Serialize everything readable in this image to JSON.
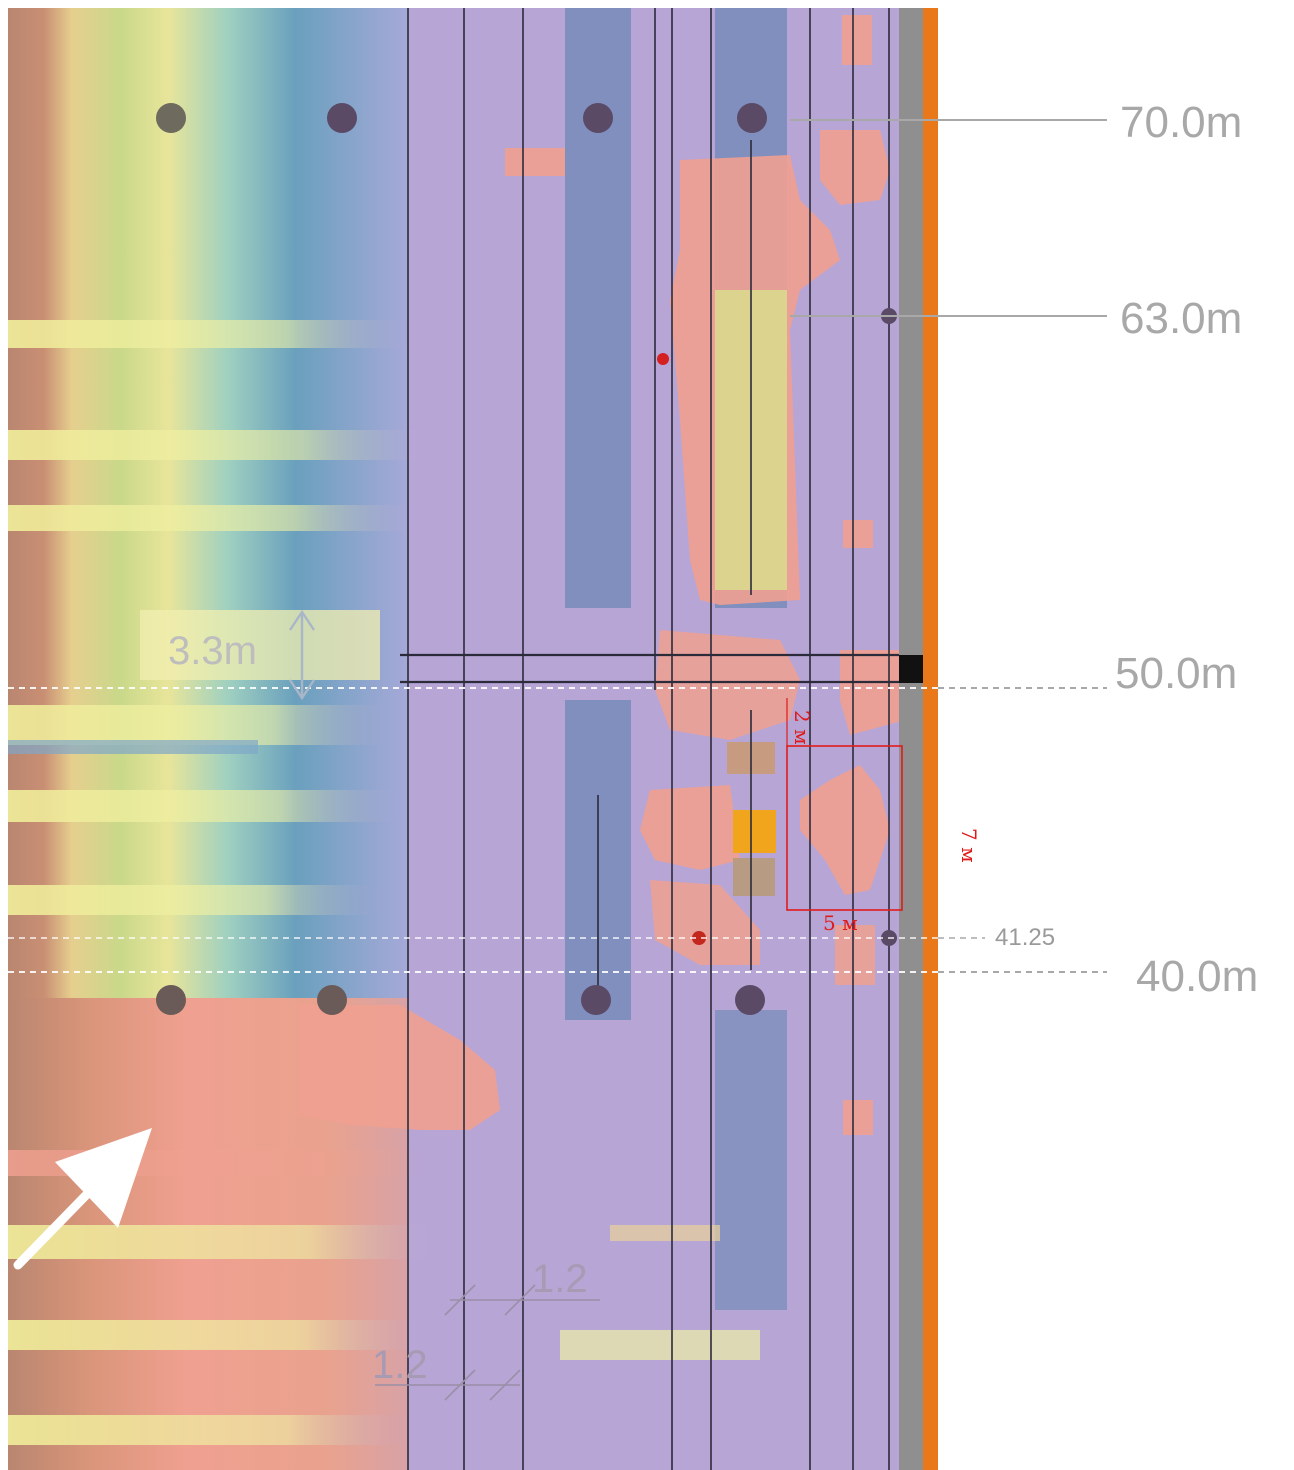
{
  "levels": {
    "l70": "70.0m",
    "l63": "63.0m",
    "l50": "50.0m",
    "l40": "40.0m",
    "l41": "41.25"
  },
  "dimensions": {
    "gap": "3.3m",
    "spacing_upper": "1.2",
    "spacing_lower": "1.2"
  },
  "zone": {
    "width": "5 м",
    "height": "7 м",
    "offset": "2 м"
  },
  "colors": {
    "background": "#b7a5d6",
    "edge_bar": "#e8781a",
    "wall": "#8f8f8f",
    "highlight": "#f0a51c",
    "zone_outline": "#e01b1b",
    "wind_arrow": "#ffffff"
  },
  "icons": {
    "wind": "wind-direction-arrow-icon"
  }
}
